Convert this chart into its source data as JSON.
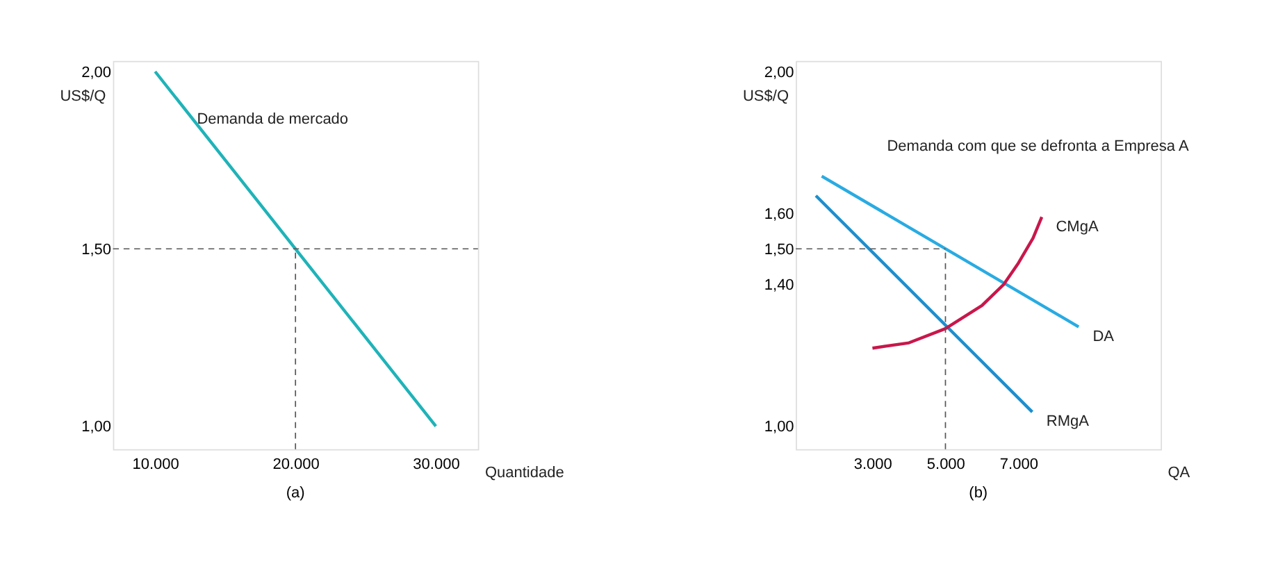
{
  "chart_data": [
    {
      "type": "line",
      "ylabel": "US$/Q",
      "xlabel": "Quantidade",
      "xlim": [
        7000,
        33000
      ],
      "ylim": [
        0.935,
        2.03
      ],
      "xticks": [
        {
          "value": 10000,
          "label": "10.000"
        },
        {
          "value": 20000,
          "label": "20.000"
        },
        {
          "value": 30000,
          "label": "30.000"
        }
      ],
      "yticks": [
        {
          "value": 1,
          "label": "1,00"
        },
        {
          "value": 1.5,
          "label": "1,50"
        },
        {
          "value": 2,
          "label": "2,00"
        }
      ],
      "grid": false,
      "marker": "none",
      "annotations": [
        "Demanda de mercado",
        "(a)"
      ],
      "series": [
        {
          "color": "#1fb3b8",
          "x": [
            10000,
            20000,
            30000
          ],
          "values": [
            2,
            1.5,
            1
          ]
        },
        {
          "color": "#555555",
          "line_style": "dashed",
          "x": [
            7000,
            33000
          ],
          "values": [
            1.5,
            1.5
          ]
        },
        {
          "color": "#555555",
          "line_style": "dashed",
          "x": [
            20000,
            20000
          ],
          "values": [
            0.935,
            1.5
          ]
        }
      ]
    },
    {
      "type": "line",
      "ylabel": "US$/Q",
      "xlabel": "QA",
      "xlim": [
        900,
        10900
      ],
      "ylim": [
        0.935,
        2.03
      ],
      "xticks": [
        {
          "value": 3000,
          "label": "3.000"
        },
        {
          "value": 5000,
          "label": "5.000"
        },
        {
          "value": 7000,
          "label": "7.000"
        }
      ],
      "yticks": [
        {
          "value": 1,
          "label": "1,00"
        },
        {
          "value": 1.4,
          "label": "1,40"
        },
        {
          "value": 1.5,
          "label": "1,50"
        },
        {
          "value": 1.6,
          "label": "1,60"
        },
        {
          "value": 2,
          "label": "2,00"
        }
      ],
      "grid": false,
      "marker": "none",
      "annotations": [
        "Demanda com que se defronta a Empresa A",
        "(b)"
      ],
      "series": [
        {
          "name": "DA",
          "color": "#29abe2",
          "x": [
            1610,
            8650
          ],
          "values": [
            1.705,
            1.28
          ]
        },
        {
          "name": "RMgA",
          "color": "#1b8fd0",
          "x": [
            1450,
            7380
          ],
          "values": [
            1.65,
            1.04
          ]
        },
        {
          "name": "CMgA",
          "color": "#c8174b",
          "x": [
            3000,
            4000,
            5000,
            6000,
            6600,
            7000,
            7400,
            7640
          ],
          "values": [
            1.22,
            1.235,
            1.275,
            1.34,
            1.4,
            1.46,
            1.53,
            1.59
          ]
        },
        {
          "color": "#555555",
          "line_style": "dashed",
          "x": [
            900,
            5000
          ],
          "values": [
            1.5,
            1.5
          ]
        },
        {
          "color": "#555555",
          "line_style": "dashed",
          "x": [
            5000,
            5000
          ],
          "values": [
            0.935,
            1.5
          ]
        }
      ]
    }
  ]
}
